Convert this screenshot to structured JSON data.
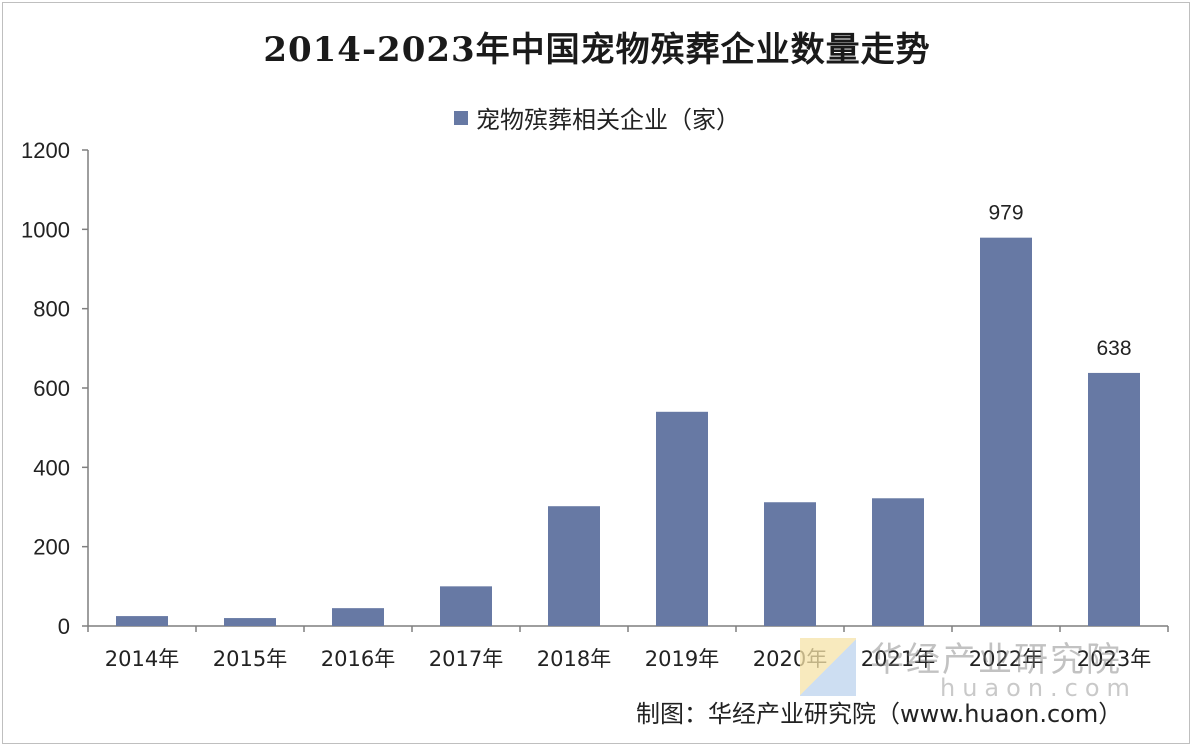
{
  "chart_data": {
    "type": "bar",
    "title": "2014-2023年中国宠物殡葬企业数量走势",
    "categories": [
      "2014年",
      "2015年",
      "2016年",
      "2017年",
      "2018年",
      "2019年",
      "2020年",
      "2021年",
      "2022年",
      "2023年"
    ],
    "series": [
      {
        "name": "宠物殡葬相关企业（家）",
        "values": [
          25,
          20,
          45,
          100,
          302,
          540,
          312,
          322,
          979,
          638
        ],
        "data_labels": {
          "2022年": "979",
          "2023年": "638"
        }
      }
    ],
    "ylim": [
      0,
      1200
    ],
    "yticks": [
      0,
      200,
      400,
      600,
      800,
      1000,
      1200
    ],
    "grid": false,
    "legend_position": "top-center",
    "bar_color": "#6779a4"
  },
  "watermark": {
    "name_cn": "华经产业研究院",
    "url": "huaon.com"
  },
  "source_note": "制图：华经产业研究院（www.huaon.com）"
}
